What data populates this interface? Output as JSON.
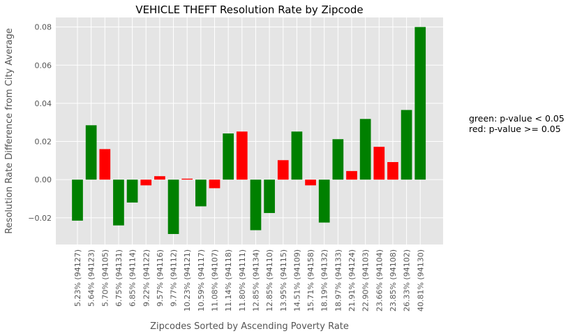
{
  "chart_data": {
    "type": "bar",
    "title": "VEHICLE THEFT Resolution Rate by Zipcode",
    "xlabel": "Zipcodes Sorted by Ascending Poverty Rate",
    "ylabel": "Resolution Rate Difference from City Average",
    "ylim": [
      -0.034,
      0.085
    ],
    "yticks": [
      -0.02,
      0.0,
      0.02,
      0.04,
      0.06,
      0.08
    ],
    "ytick_labels": [
      "−0.02",
      "0.00",
      "0.02",
      "0.04",
      "0.06",
      "0.08"
    ],
    "grid": true,
    "categories": [
      "5.23%  (94127)",
      "5.64%  (94123)",
      "5.70%  (94105)",
      "6.75%  (94131)",
      "6.85%  (94114)",
      "9.22%  (94122)",
      "9.57%  (94116)",
      "9.77%  (94112)",
      "10.23%  (94121)",
      "10.59%  (94117)",
      "11.08%  (94107)",
      "11.14%  (94118)",
      "11.80%  (94111)",
      "12.85%  (94134)",
      "12.85%  (94110)",
      "13.95%  (94115)",
      "14.51%  (94109)",
      "15.71%  (94158)",
      "18.19%  (94132)",
      "18.97%  (94133)",
      "21.91%  (94124)",
      "22.90%  (94103)",
      "23.66%  (94104)",
      "23.85%  (94108)",
      "26.33%  (94102)",
      "40.81%  (94130)"
    ],
    "values": [
      -0.0215,
      0.0285,
      0.016,
      -0.024,
      -0.012,
      -0.003,
      0.0018,
      -0.0285,
      0.0005,
      -0.014,
      -0.0045,
      0.0242,
      0.0252,
      -0.0265,
      -0.0175,
      0.0102,
      0.0252,
      -0.003,
      -0.0225,
      0.0212,
      0.0045,
      0.0318,
      0.0172,
      0.0092,
      0.0365,
      0.08
    ],
    "significant": [
      true,
      true,
      false,
      true,
      true,
      false,
      false,
      true,
      false,
      true,
      false,
      true,
      false,
      true,
      true,
      false,
      true,
      false,
      true,
      true,
      false,
      true,
      false,
      false,
      true,
      true
    ],
    "colors": {
      "significant": "#008000",
      "not_significant": "#ff0000"
    },
    "annotation": {
      "line1": "green: p-value < 0.05",
      "line2": "red: p-value >= 0.05"
    }
  },
  "theme": {
    "plot_background": "#e5e5e5",
    "grid_color": "#ffffff",
    "text_color": "#555555"
  }
}
